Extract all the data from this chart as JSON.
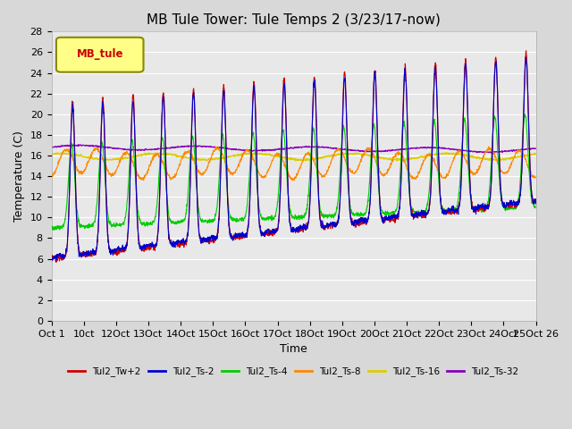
{
  "title": "MB Tule Tower: Tule Temps 2 (3/23/17-now)",
  "xlabel": "Time",
  "ylabel": "Temperature (C)",
  "ylim": [
    0,
    28
  ],
  "yticks": [
    0,
    2,
    4,
    6,
    8,
    10,
    12,
    14,
    16,
    18,
    20,
    22,
    24,
    26,
    28
  ],
  "xlim": [
    0,
    25
  ],
  "xtick_labels": [
    "Oct 1",
    "10ct",
    "12Oct",
    "13Oct",
    "14Oct",
    "15Oct",
    "16Oct",
    "17Oct",
    "18Oct",
    "19Oct",
    "20Oct",
    "21Oct",
    "22Oct",
    "23Oct",
    "24Oct",
    "25Oct 26"
  ],
  "xtick_positions": [
    0.0,
    1.67,
    3.33,
    5.0,
    6.67,
    8.33,
    10.0,
    11.67,
    13.33,
    15.0,
    16.67,
    18.33,
    20.0,
    21.67,
    23.33,
    25.0
  ],
  "series_names": [
    "Tul2_Tw+2",
    "Tul2_Ts-2",
    "Tul2_Ts-4",
    "Tul2_Ts-8",
    "Tul2_Ts-16",
    "Tul2_Ts-32"
  ],
  "series_colors": [
    "#cc0000",
    "#0000cc",
    "#00cc00",
    "#ff8800",
    "#ddcc00",
    "#8800bb"
  ],
  "background_color": "#d8d8d8",
  "plot_bg_color": "#e8e8e8",
  "grid_color": "#ffffff",
  "title_fontsize": 11,
  "axis_fontsize": 9,
  "tick_fontsize": 8,
  "mb_tule_box_color": "#ffff88",
  "mb_tule_text_color": "#cc0000",
  "mb_tule_edge_color": "#888800"
}
